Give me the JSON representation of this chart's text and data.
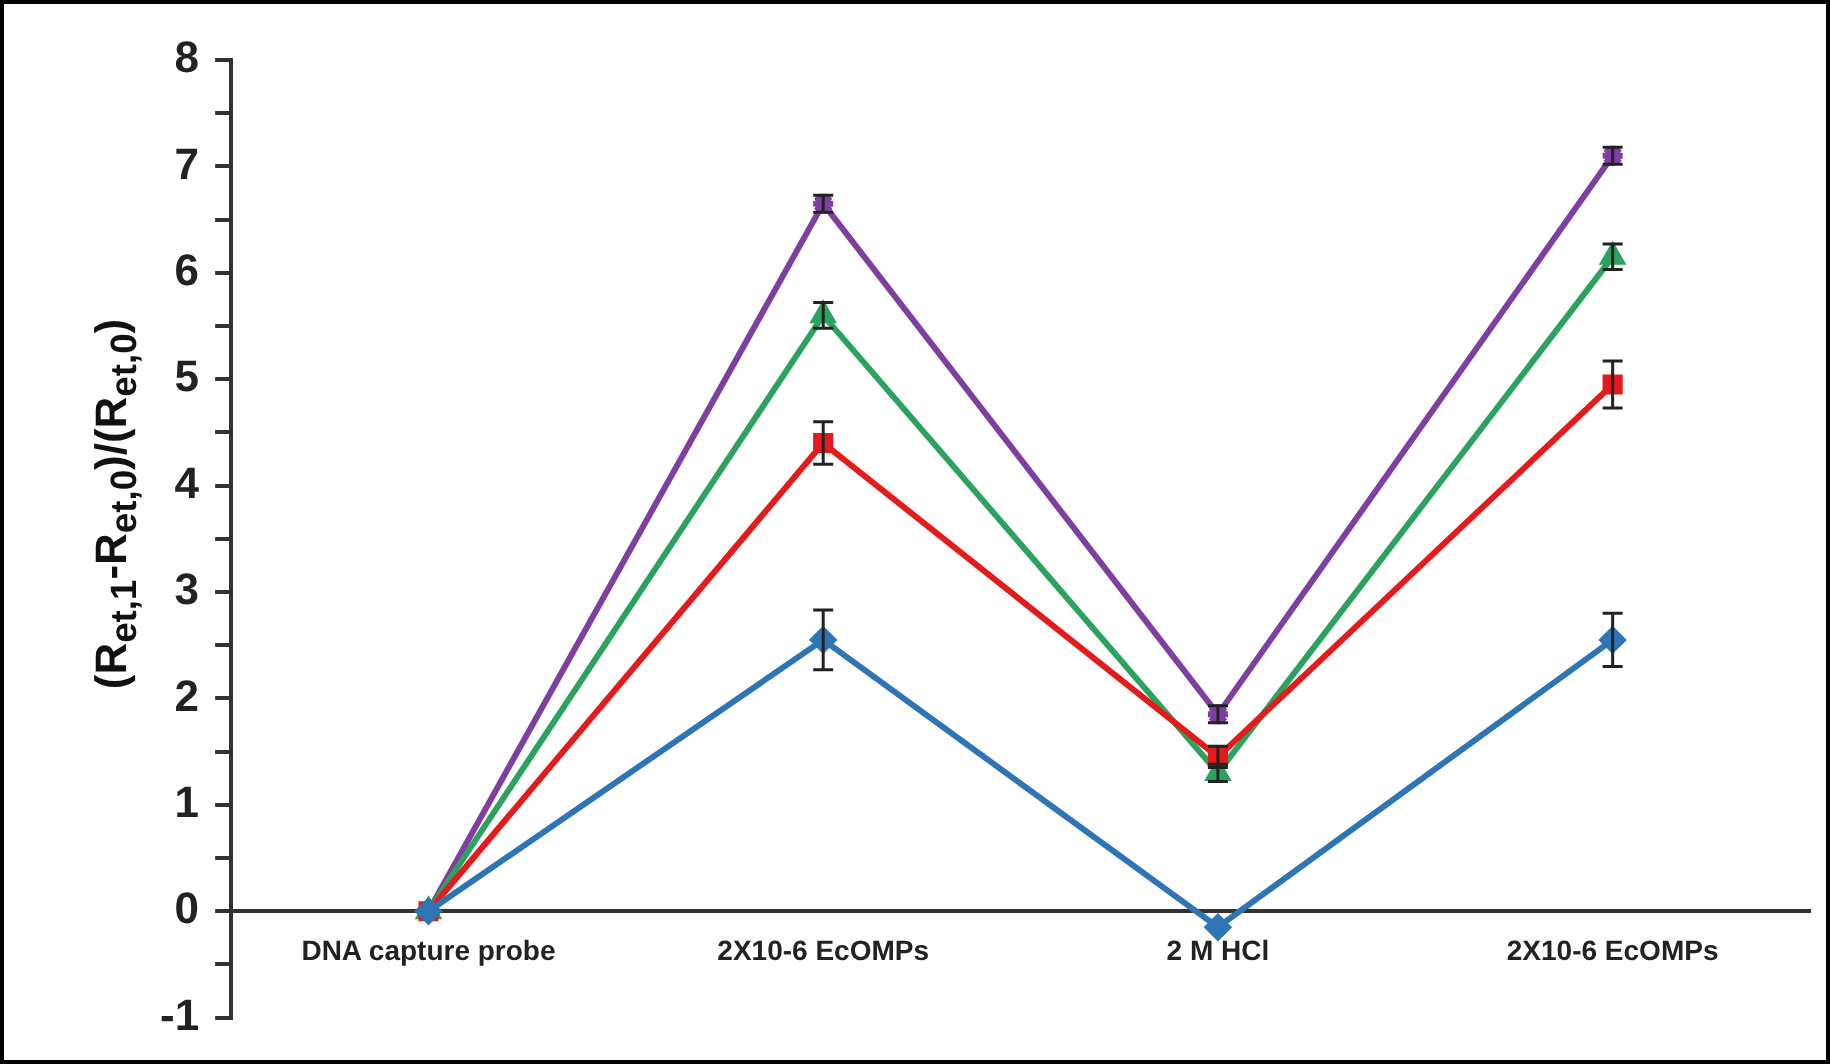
{
  "chart_data": {
    "type": "line",
    "ylabel": "(R$_{et,1}$-R$_{et,0}$)/(R$_{et,0}$)",
    "categories": [
      "DNA capture probe",
      "2X10-6 EcOMPs",
      "2 M HCl",
      "2X10-6 EcOMPs"
    ],
    "series": [
      {
        "color": "#2e75b6",
        "marker": "diamond",
        "values": [
          0,
          2.55,
          -0.15,
          2.55
        ],
        "errors": [
          null,
          0.28,
          null,
          0.25
        ]
      },
      {
        "color": "#e41a1c",
        "marker": "square",
        "values": [
          0,
          4.4,
          1.45,
          4.95
        ],
        "errors": [
          null,
          0.2,
          0.1,
          0.22
        ]
      },
      {
        "color": "#2ca25f",
        "marker": "triangle",
        "values": [
          0,
          5.6,
          1.3,
          6.15
        ],
        "errors": [
          null,
          0.12,
          0.08,
          0.12
        ]
      },
      {
        "color": "#7e3fa0",
        "marker": "cross",
        "values": [
          0,
          6.65,
          1.85,
          7.1
        ],
        "errors": [
          null,
          0.08,
          0.08,
          0.08
        ]
      }
    ],
    "ylim": [
      -1,
      8
    ],
    "yticks": [
      -1,
      {
        "value": -0.5,
        "label": null
      },
      0,
      {
        "value": 0.5,
        "label": null
      },
      1,
      {
        "value": 1.5,
        "label": null
      },
      2,
      {
        "value": 2.5,
        "label": null
      },
      3,
      {
        "value": 3.5,
        "label": null
      },
      4,
      {
        "value": 4.5,
        "label": null
      },
      5,
      {
        "value": 5.5,
        "label": null
      },
      6,
      {
        "value": 6.5,
        "label": null
      },
      7,
      {
        "value": 7.5,
        "label": null
      },
      8
    ],
    "grid": false,
    "legend": false,
    "line_style": "solid"
  }
}
